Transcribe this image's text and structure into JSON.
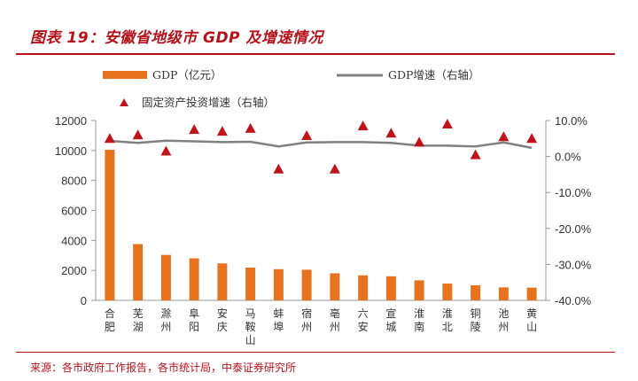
{
  "figure": {
    "title": "图表 19：安徽省地级市 GDP 及增速情况",
    "source": "来源：各市政府工作报告，各市统计局，中泰证券研究所"
  },
  "chart_data": {
    "type": "bar+line+scatter",
    "categories": [
      "合肥",
      "芜湖",
      "滁州",
      "阜阳",
      "安庆",
      "马鞍山",
      "蚌埠",
      "宿州",
      "亳州",
      "六安",
      "宣城",
      "淮南",
      "淮北",
      "铜陵",
      "池州",
      "黄山"
    ],
    "series": [
      {
        "name": "GDP（亿元）",
        "kind": "bar",
        "axis": "left",
        "color": "#e8731f",
        "values": [
          10046,
          3753,
          3032,
          2805,
          2468,
          2186,
          2083,
          2045,
          1806,
          1670,
          1607,
          1337,
          1120,
          1004,
          868,
          850
        ]
      },
      {
        "name": "GDP增速（右轴）",
        "kind": "line",
        "axis": "right",
        "color": "#808080",
        "values": [
          4.3,
          3.8,
          4.4,
          4.2,
          4.0,
          4.1,
          2.8,
          3.9,
          4.0,
          4.0,
          3.8,
          3.0,
          3.0,
          2.8,
          3.9,
          2.4
        ]
      },
      {
        "name": "固定资产投资增速（右轴）",
        "kind": "scatter",
        "axis": "right",
        "color": "#c0141c",
        "values": [
          5.0,
          6.0,
          1.5,
          7.5,
          7.0,
          7.8,
          -3.5,
          5.8,
          -3.5,
          8.5,
          6.5,
          4.0,
          9.0,
          0.5,
          5.5,
          5.0
        ]
      }
    ],
    "y_left": {
      "min": 0,
      "max": 12000,
      "ticks": [
        "0",
        "2000",
        "4000",
        "6000",
        "8000",
        "10000",
        "12000"
      ]
    },
    "y_right": {
      "min": -40,
      "max": 10,
      "ticks": [
        "-40.0%",
        "-30.0%",
        "-20.0%",
        "-10.0%",
        "0.0%",
        "10.0%"
      ]
    },
    "legend": {
      "gdp": "GDP（亿元）",
      "growth": "GDP增速（右轴）",
      "investment": "固定资产投资增速（右轴）"
    }
  }
}
